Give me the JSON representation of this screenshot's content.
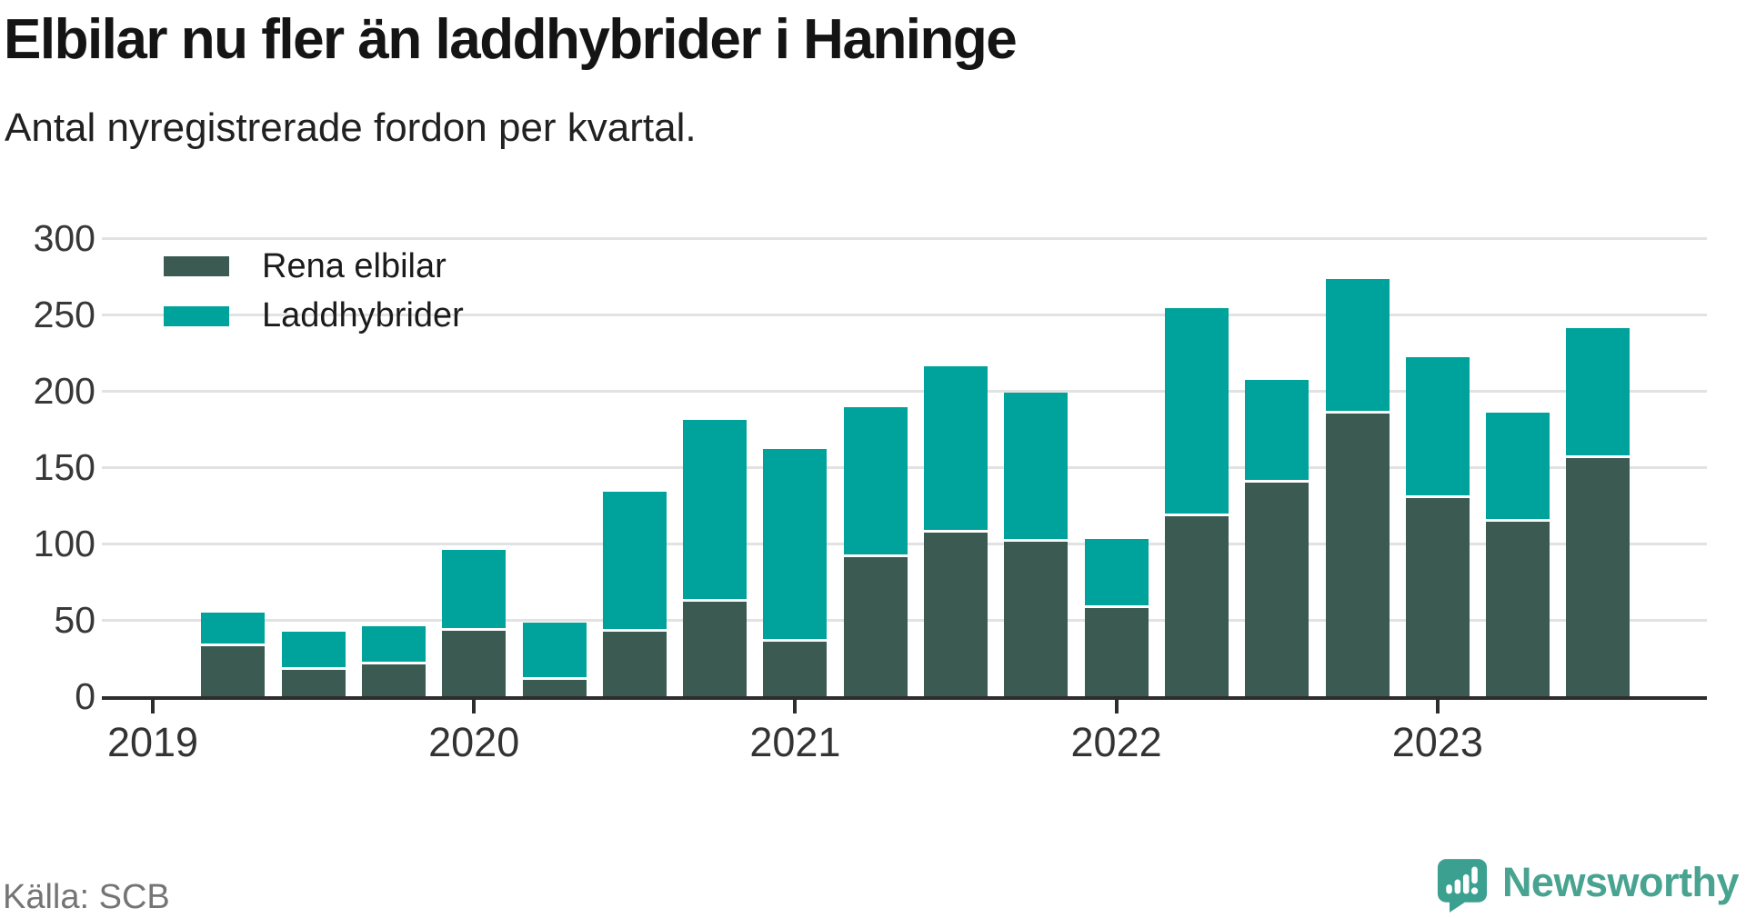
{
  "header": {
    "title": "Elbilar nu fler än laddhybrider i Haninge",
    "subtitle": "Antal nyregistrerade fordon per kvartal."
  },
  "footer": {
    "source": "Källa: SCB",
    "brand": "Newsworthy"
  },
  "colors": {
    "elbilar": "#3a5a52",
    "laddhybrider": "#00a39b",
    "gridline": "#e2e2e2",
    "axis": "#2d2d2d",
    "axis_label": "#383838",
    "title": "#141414",
    "source_text": "#757575",
    "brand_teal": "#48a391",
    "background": "#ffffff"
  },
  "chart_data": {
    "type": "bar",
    "stacked": true,
    "title": "Elbilar nu fler än laddhybrider i Haninge",
    "subtitle": "Antal nyregistrerade fordon per kvartal.",
    "xlabel": "",
    "ylabel": "",
    "ylim": [
      0,
      300
    ],
    "y_ticks": [
      0,
      50,
      100,
      150,
      200,
      250,
      300
    ],
    "grid": true,
    "legend_position": "top-left",
    "categories": [
      "2019 Q1",
      "2019 Q2",
      "2019 Q3",
      "2019 Q4",
      "2020 Q1",
      "2020 Q2",
      "2020 Q3",
      "2020 Q4",
      "2021 Q1",
      "2021 Q2",
      "2021 Q3",
      "2021 Q4",
      "2022 Q1",
      "2022 Q2",
      "2022 Q3",
      "2022 Q4",
      "2023 Q1",
      "2023 Q2",
      "2023 Q3",
      "2023 Q4"
    ],
    "x_tick_labels": [
      {
        "label": "2019",
        "slot": 0
      },
      {
        "label": "2020",
        "slot": 4
      },
      {
        "label": "2021",
        "slot": 8
      },
      {
        "label": "2022",
        "slot": 12
      },
      {
        "label": "2023",
        "slot": 16
      }
    ],
    "series": [
      {
        "name": "Rena elbilar",
        "color": "#3a5a52",
        "values": [
          null,
          33,
          17,
          21,
          43,
          11,
          42,
          62,
          36,
          91,
          107,
          101,
          58,
          118,
          140,
          185,
          130,
          114,
          156,
          null
        ]
      },
      {
        "name": "Laddhybrider",
        "color": "#00a39b",
        "values": [
          null,
          22,
          25,
          25,
          53,
          37,
          92,
          119,
          126,
          98,
          109,
          98,
          45,
          136,
          67,
          88,
          92,
          72,
          85,
          null
        ]
      }
    ],
    "totals": [
      null,
      55,
      42,
      46,
      96,
      48,
      134,
      181,
      162,
      189,
      216,
      199,
      103,
      254,
      207,
      273,
      222,
      186,
      241,
      null
    ]
  }
}
